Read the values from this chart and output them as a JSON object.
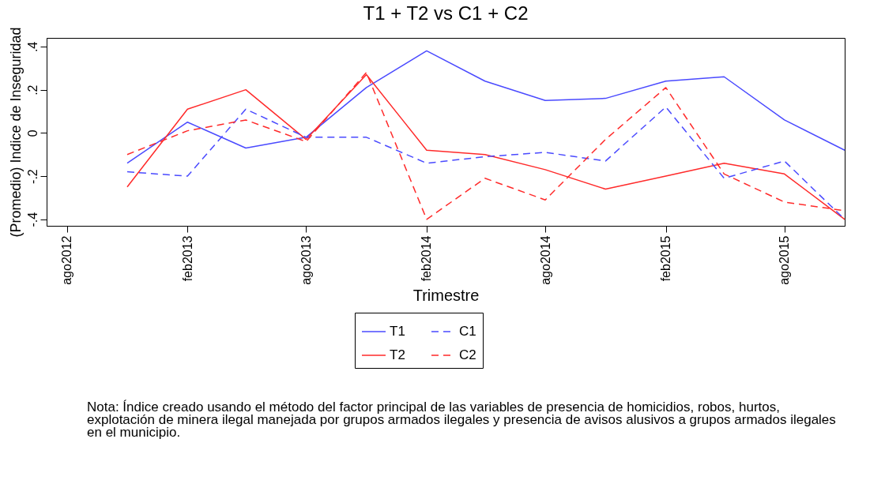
{
  "chart_data": {
    "type": "line",
    "title": "T1 + T2 vs C1 + C2",
    "xlabel": "Trimestre",
    "ylabel": "(Promedio) Indice de Inseguridad",
    "x": [
      "2012-11",
      "2013-02",
      "2013-05",
      "2013-08",
      "2013-11",
      "2014-02",
      "2014-05",
      "2014-08",
      "2014-11",
      "2015-02",
      "2015-05",
      "2015-08",
      "2015-11"
    ],
    "xlim": [
      "2012-07",
      "2015-11"
    ],
    "xticks": [
      {
        "value": "2012-08",
        "label": "ago2012"
      },
      {
        "value": "2013-02",
        "label": "feb2013"
      },
      {
        "value": "2013-08",
        "label": "ago2013"
      },
      {
        "value": "2014-02",
        "label": "feb2014"
      },
      {
        "value": "2014-08",
        "label": "ago2014"
      },
      {
        "value": "2015-02",
        "label": "feb2015"
      },
      {
        "value": "2015-08",
        "label": "ago2015"
      }
    ],
    "ylim": [
      -0.43,
      0.44
    ],
    "yticks": [
      {
        "value": -0.4,
        "label": "-.4"
      },
      {
        "value": -0.2,
        "label": "-.2"
      },
      {
        "value": 0,
        "label": "0"
      },
      {
        "value": 0.2,
        "label": ".2"
      },
      {
        "value": 0.4,
        "label": ".4"
      }
    ],
    "series": [
      {
        "name": "T1",
        "color": "#4a4aff",
        "line_style": "solid",
        "values": [
          -0.14,
          0.05,
          -0.07,
          -0.02,
          0.21,
          0.38,
          0.24,
          0.15,
          0.16,
          0.24,
          0.26,
          0.06,
          -0.08
        ]
      },
      {
        "name": "T2",
        "color": "#ff2a2a",
        "line_style": "solid",
        "values": [
          -0.25,
          0.11,
          0.2,
          -0.03,
          0.27,
          -0.08,
          -0.1,
          -0.17,
          -0.26,
          -0.2,
          -0.14,
          -0.19,
          -0.4
        ]
      },
      {
        "name": "C1",
        "color": "#4a4aff",
        "line_style": "dashed",
        "values": [
          -0.18,
          -0.2,
          0.11,
          -0.02,
          -0.02,
          -0.14,
          -0.11,
          -0.09,
          -0.13,
          0.12,
          -0.21,
          -0.13,
          -0.4
        ]
      },
      {
        "name": "C2",
        "color": "#ff2a2a",
        "line_style": "dashed",
        "values": [
          -0.1,
          0.01,
          0.06,
          -0.04,
          0.28,
          -0.4,
          -0.21,
          -0.31,
          -0.03,
          0.21,
          -0.19,
          -0.32,
          -0.36
        ]
      }
    ],
    "grid": false,
    "legend": "bottom",
    "annotations": [
      "Nota: Índice creado usando el método del factor principal de las variables de presencia de homicidios, robos, hurtos, explotación de minera ilegal manejada por grupos armados ilegales y presencia de avisos alusivos a grupos armados ilegales en el municipio."
    ]
  }
}
